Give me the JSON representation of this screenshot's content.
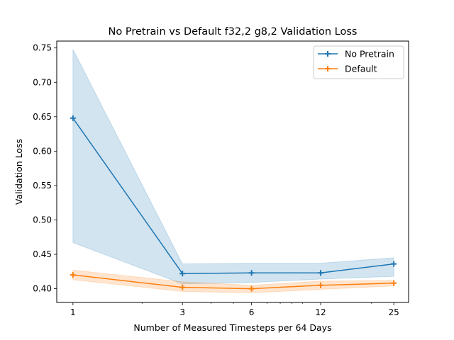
{
  "chart_data": {
    "type": "line",
    "title": "No Pretrain vs Default f32,2 g8,2 Validation Loss",
    "xlabel": "Number of Measured Timesteps per 64 Days",
    "ylabel": "Validation Loss",
    "x_scale": "log",
    "x": [
      1,
      3,
      6,
      12,
      25
    ],
    "x_tick_labels": [
      "1",
      "3",
      "6",
      "12",
      "25"
    ],
    "xlim": [
      0.85,
      29
    ],
    "ylim": [
      0.38,
      0.76
    ],
    "y_ticks": [
      0.4,
      0.45,
      0.5,
      0.55,
      0.6,
      0.65,
      0.7,
      0.75
    ],
    "y_tick_labels": [
      "0.40",
      "0.45",
      "0.50",
      "0.55",
      "0.60",
      "0.65",
      "0.70",
      "0.75"
    ],
    "grid": false,
    "legend_position": "top-right",
    "series": [
      {
        "name": "No Pretrain",
        "color": "#1f77b4",
        "marker": "plus",
        "values": [
          0.648,
          0.422,
          0.423,
          0.423,
          0.436
        ],
        "band_lower": [
          0.467,
          0.407,
          0.409,
          0.414,
          0.418
        ],
        "band_upper": [
          0.748,
          0.436,
          0.437,
          0.437,
          0.445
        ]
      },
      {
        "name": "Default",
        "color": "#ff7f0e",
        "marker": "plus",
        "values": [
          0.42,
          0.402,
          0.4,
          0.405,
          0.408
        ],
        "band_lower": [
          0.413,
          0.396,
          0.394,
          0.399,
          0.404
        ],
        "band_upper": [
          0.427,
          0.41,
          0.405,
          0.411,
          0.412
        ]
      }
    ]
  }
}
